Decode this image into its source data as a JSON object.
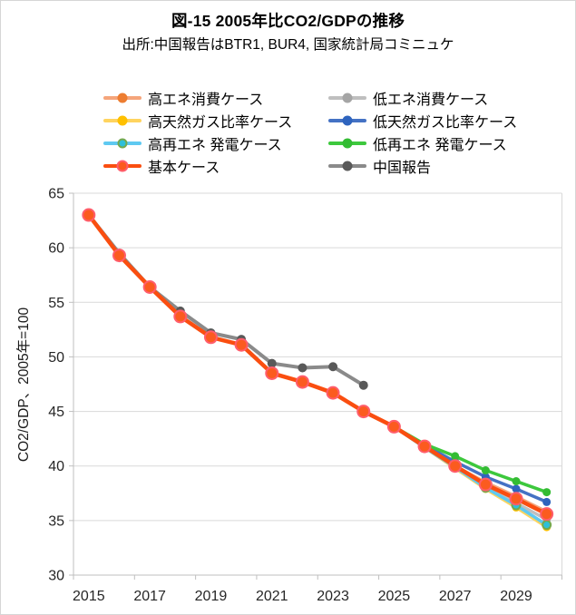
{
  "header": {
    "title": "図-15  2005年比CO2/GDPの推移",
    "subtitle": "出所:中国報告はBTR1, BUR4, 国家統計局コミニュケ"
  },
  "chart_data": {
    "type": "line",
    "title": "図-15  2005年比CO2/GDPの推移",
    "subtitle": "出所:中国報告はBTR1, BUR4, 国家統計局コミニュケ",
    "xlabel": "",
    "ylabel": "CO2/GDP、2005年=100",
    "ylim": [
      30,
      65
    ],
    "yticks": [
      65,
      60,
      55,
      50,
      45,
      40,
      35,
      30
    ],
    "xticks": [
      2015,
      2017,
      2019,
      2021,
      2023,
      2025,
      2027,
      2029
    ],
    "x_start": 2015,
    "x_end": 2030,
    "grid": "horizontal",
    "legend_position": "top",
    "series": [
      {
        "name": "高エネ消費ケース",
        "line_color": "#F5A57B",
        "marker_color": "#ED7D31",
        "line_width": 3.5,
        "marker_radius": 4.5,
        "z": 0,
        "values": [
          63.0,
          59.3,
          56.4,
          53.7,
          51.8,
          51.1,
          48.5,
          47.7,
          46.7,
          45.0,
          43.6,
          41.8,
          40.0,
          38.5,
          37.2,
          35.8
        ]
      },
      {
        "name": "低エネ消費ケース",
        "line_color": "#BFBFBF",
        "marker_color": "#A5A5A5",
        "line_width": 3.5,
        "marker_radius": 4.5,
        "z": 1,
        "values": [
          63.0,
          59.3,
          56.4,
          53.7,
          51.8,
          51.1,
          48.5,
          47.7,
          46.7,
          45.0,
          43.6,
          41.7,
          39.8,
          38.1,
          36.6,
          35.1
        ]
      },
      {
        "name": "高天然ガス比率ケース",
        "line_color": "#FFD45F",
        "marker_color": "#FFC000",
        "line_width": 3.5,
        "marker_radius": 4.5,
        "z": 2,
        "values": [
          63.0,
          59.3,
          56.4,
          53.7,
          51.8,
          51.1,
          48.5,
          47.7,
          46.7,
          45.0,
          43.6,
          41.7,
          39.8,
          37.9,
          36.2,
          34.4
        ]
      },
      {
        "name": "低天然ガス比率ケース",
        "line_color": "#4472C4",
        "marker_color": "#2E64BE",
        "line_width": 3.5,
        "marker_radius": 4.5,
        "z": 3,
        "values": [
          63.0,
          59.3,
          56.4,
          53.7,
          51.8,
          51.1,
          48.5,
          47.7,
          46.7,
          45.0,
          43.6,
          41.9,
          40.4,
          39.0,
          37.9,
          36.7
        ]
      },
      {
        "name": "高再エネ 発電ケース",
        "line_color": "#5EC9F1",
        "marker_color": "#2EC0D9",
        "marker_edge": "#74A94F",
        "line_width": 3.5,
        "marker_radius": 4.5,
        "z": 4,
        "values": [
          63.0,
          59.3,
          56.4,
          53.7,
          51.8,
          51.1,
          48.5,
          47.7,
          46.7,
          45.0,
          43.6,
          41.7,
          39.9,
          38.0,
          36.4,
          34.6
        ]
      },
      {
        "name": "低再エネ 発電ケース",
        "line_color": "#3DC83D",
        "marker_color": "#33BC33",
        "line_width": 3.5,
        "marker_radius": 4.5,
        "z": 5,
        "values": [
          63.0,
          59.3,
          56.4,
          53.7,
          51.8,
          51.1,
          48.5,
          47.7,
          46.7,
          45.0,
          43.6,
          42.0,
          40.9,
          39.6,
          38.6,
          37.6
        ]
      },
      {
        "name": "基本ケース",
        "line_color": "#FA4E10",
        "marker_color": "#FB5B1F",
        "marker_edge": "#FF5D6C",
        "line_width": 4.5,
        "marker_radius": 6.5,
        "z": 7,
        "values": [
          63.0,
          59.3,
          56.4,
          53.7,
          51.8,
          51.1,
          48.5,
          47.7,
          46.7,
          45.0,
          43.6,
          41.8,
          40.0,
          38.3,
          37.0,
          35.6
        ]
      },
      {
        "name": "中国報告",
        "line_color": "#8A8A8A",
        "marker_color": "#595959",
        "line_width": 4.0,
        "marker_radius": 5.0,
        "z": 6,
        "values": [
          63.0,
          59.5,
          56.4,
          54.2,
          52.2,
          51.6,
          49.4,
          49.0,
          49.1,
          47.4
        ]
      }
    ]
  },
  "axes_style": {
    "grid_color": "#D9D9D9",
    "axis_color": "#BFBFBF",
    "tick_label_color": "#262626",
    "tick_font_size": 16
  }
}
